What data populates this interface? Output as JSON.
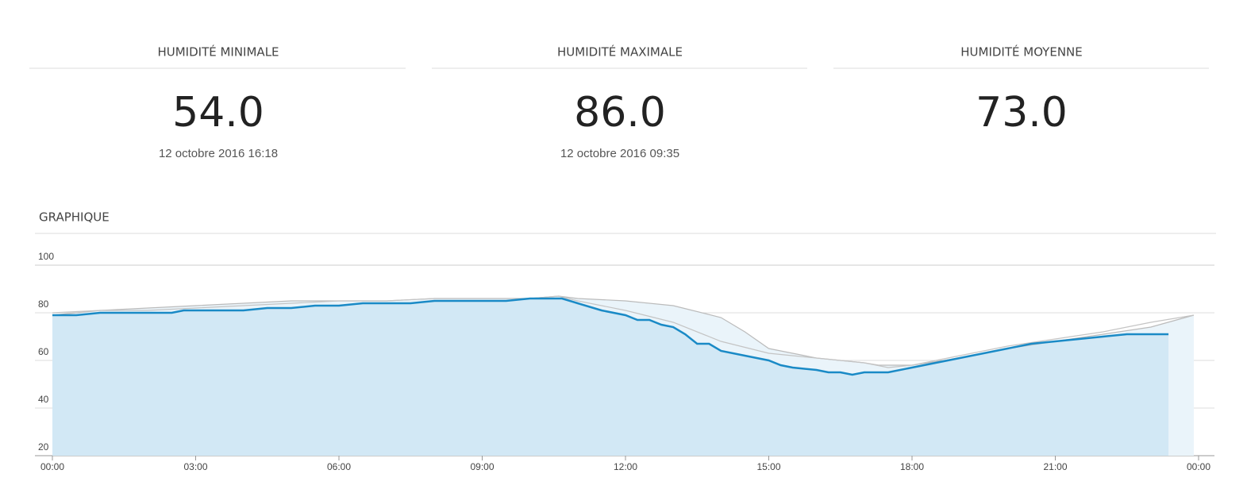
{
  "stats": [
    {
      "title": "HUMIDITÉ MINIMALE",
      "value": "54.0",
      "date": "12 octobre 2016 16:18"
    },
    {
      "title": "HUMIDITÉ MAXIMALE",
      "value": "86.0",
      "date": "12 octobre 2016 09:35"
    },
    {
      "title": "HUMIDITÉ MOYENNE",
      "value": "73.0"
    }
  ],
  "section_title": "GRAPHIQUE",
  "chart_data": {
    "type": "line",
    "xlim": [
      0,
      24
    ],
    "xticks": [
      {
        "value": 0,
        "label": "00:00"
      },
      {
        "value": 3,
        "label": "03:00"
      },
      {
        "value": 6,
        "label": "06:00"
      },
      {
        "value": 9,
        "label": "09:00"
      },
      {
        "value": 12,
        "label": "12:00"
      },
      {
        "value": 15,
        "label": "15:00"
      },
      {
        "value": 18,
        "label": "18:00"
      },
      {
        "value": 21,
        "label": "21:00"
      },
      {
        "value": 24,
        "label": "00:00"
      }
    ],
    "ylim": [
      20,
      100
    ],
    "yticks": [
      20,
      40,
      60,
      80,
      100
    ],
    "grid": true,
    "series": [
      {
        "color": "#bbbbbb",
        "fill": "#eaf4fa",
        "x": [
          0,
          1,
          2,
          3,
          4,
          5,
          6,
          7,
          8,
          9,
          10,
          10.6,
          11,
          12,
          13,
          14,
          14.5,
          15,
          15.5,
          16,
          16.5,
          17,
          17.3,
          18,
          19,
          20,
          21,
          22,
          23,
          23.9
        ],
        "values": [
          79,
          81,
          82,
          83,
          84,
          85,
          85,
          85,
          86,
          86,
          86,
          87,
          86,
          85,
          83,
          78,
          72,
          65,
          63,
          61,
          60,
          59,
          58,
          58,
          61,
          65,
          68,
          71,
          74,
          79
        ]
      },
      {
        "color": "#c4c4c4",
        "x": [
          0,
          1,
          2,
          3,
          4,
          5,
          6,
          7,
          8,
          9,
          10,
          10.6,
          11,
          12,
          13,
          14,
          15,
          16,
          17,
          17.5,
          18,
          19,
          20,
          21,
          22,
          23,
          23.9
        ],
        "values": [
          80,
          81,
          81,
          82,
          83,
          84,
          85,
          85,
          86,
          86,
          86,
          87,
          85,
          81,
          76,
          68,
          63,
          61,
          59,
          57,
          58,
          62,
          66,
          69,
          72,
          76,
          79
        ]
      },
      {
        "color": "#1a8ac6",
        "fill": "#d2e8f5",
        "x": [
          0,
          0.5,
          1,
          1.5,
          2,
          2.5,
          2.75,
          3,
          3.5,
          4,
          4.5,
          5,
          5.5,
          6,
          6.5,
          7,
          7.5,
          8,
          8.5,
          9,
          9.5,
          10,
          10.5,
          10.67,
          11,
          11.5,
          12,
          12.25,
          12.5,
          12.75,
          13,
          13.25,
          13.5,
          13.75,
          14,
          14.5,
          14.75,
          15,
          15.25,
          15.5,
          16,
          16.25,
          16.5,
          16.75,
          17,
          17.5,
          18,
          18.5,
          19,
          19.5,
          20,
          20.5,
          21,
          21.5,
          22,
          22.5,
          23,
          23.37
        ],
        "values": [
          79,
          79,
          80,
          80,
          80,
          80,
          81,
          81,
          81,
          81,
          82,
          82,
          83,
          83,
          84,
          84,
          84,
          85,
          85,
          85,
          85,
          86,
          86,
          86,
          84,
          81,
          79,
          77,
          77,
          75,
          74,
          71,
          67,
          67,
          64,
          62,
          61,
          60,
          58,
          57,
          56,
          55,
          55,
          54,
          55,
          55,
          57,
          59,
          61,
          63,
          65,
          67,
          68,
          69,
          70,
          71,
          71,
          71
        ]
      }
    ]
  }
}
